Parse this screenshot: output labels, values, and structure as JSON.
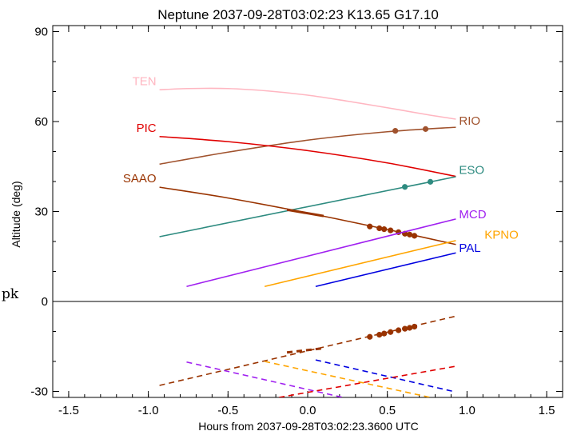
{
  "chart_data": {
    "type": "line",
    "title": "Neptune 2037-09-28T03:02:23  K13.65  G17.10",
    "xlabel": "Hours from 2037-09-28T03:02:23.3600 UTC",
    "ylabel": "Altitude (deg)",
    "xlim": [
      -1.6,
      1.6
    ],
    "ylim": [
      -32,
      92
    ],
    "xticks": [
      -1.5,
      -1.0,
      -0.5,
      0.0,
      0.5,
      1.0,
      1.5
    ],
    "xtick_labels": [
      "-1.5",
      "-1.0",
      "-0.5",
      "0.0",
      "0.5",
      "1.0",
      "1.5"
    ],
    "yticks": [
      -30,
      0,
      30,
      60,
      90
    ],
    "ytick_labels": [
      "-30",
      "0",
      "30",
      "60",
      "90"
    ],
    "zero_line": true,
    "grid": false,
    "stray_text": "pk",
    "series": [
      {
        "name": "TEN",
        "color": "#ffb6c1",
        "style": "solid",
        "points": [
          [
            -0.93,
            70.6
          ],
          [
            -0.75,
            71.0
          ],
          [
            -0.5,
            71.0
          ],
          [
            -0.25,
            70.2
          ],
          [
            0.0,
            68.8
          ],
          [
            0.25,
            66.8
          ],
          [
            0.5,
            64.6
          ],
          [
            0.75,
            62.3
          ],
          [
            0.93,
            60.8
          ]
        ]
      },
      {
        "name": "RIO",
        "color": "#a0522d",
        "style": "solid",
        "points": [
          [
            -0.93,
            45.8
          ],
          [
            -0.5,
            49.8
          ],
          [
            0.0,
            53.8
          ],
          [
            0.5,
            56.6
          ],
          [
            0.93,
            58.1
          ]
        ],
        "markers": [
          [
            0.55,
            56.9
          ],
          [
            0.74,
            57.5
          ]
        ]
      },
      {
        "name": "PIC",
        "color": "#e00000",
        "style": "solid",
        "points": [
          [
            -0.93,
            55.0
          ],
          [
            -0.5,
            53.3
          ],
          [
            0.0,
            50.3
          ],
          [
            0.5,
            46.2
          ],
          [
            0.93,
            41.7
          ]
        ]
      },
      {
        "name": "ESO",
        "color": "#2e8b80",
        "style": "solid",
        "points": [
          [
            -0.93,
            21.6
          ],
          [
            0.93,
            41.6
          ]
        ],
        "markers": [
          [
            0.61,
            38.2
          ],
          [
            0.77,
            39.9
          ]
        ]
      },
      {
        "name": "SAAO",
        "color": "#993300",
        "style": "solid",
        "points": [
          [
            -0.93,
            38.1
          ],
          [
            -0.5,
            34.5
          ],
          [
            0.0,
            29.5
          ],
          [
            0.5,
            24.0
          ],
          [
            0.93,
            19.0
          ]
        ],
        "markers": [
          [
            0.39,
            25.0
          ],
          [
            0.45,
            24.4
          ],
          [
            0.48,
            24.1
          ],
          [
            0.52,
            23.7
          ],
          [
            0.57,
            23.1
          ],
          [
            0.61,
            22.6
          ],
          [
            0.64,
            22.3
          ],
          [
            0.67,
            21.9
          ]
        ]
      },
      {
        "name": "MCD",
        "color": "#a020f0",
        "style": "solid",
        "points": [
          [
            -0.76,
            5.0
          ],
          [
            0.93,
            27.5
          ]
        ]
      },
      {
        "name": "KPNO",
        "color": "#ffa500",
        "style": "solid",
        "points": [
          [
            -0.27,
            5.0
          ],
          [
            0.93,
            20.3
          ]
        ]
      },
      {
        "name": "PAL",
        "color": "#0000e0",
        "style": "solid",
        "points": [
          [
            0.05,
            5.0
          ],
          [
            0.93,
            16.2
          ]
        ]
      },
      {
        "name": "",
        "color": "#993300",
        "style": "dashed",
        "points": [
          [
            -0.93,
            -28.0
          ],
          [
            0.93,
            -4.9
          ]
        ],
        "markers": [
          [
            0.39,
            -11.8
          ],
          [
            0.45,
            -11.1
          ],
          [
            0.48,
            -10.7
          ],
          [
            0.52,
            -10.2
          ],
          [
            0.57,
            -9.6
          ],
          [
            0.61,
            -9.1
          ],
          [
            0.64,
            -8.8
          ],
          [
            0.67,
            -8.4
          ]
        ]
      },
      {
        "name": "",
        "color": "#a020f0",
        "style": "dashed",
        "points": [
          [
            -0.76,
            -20.2
          ],
          [
            0.22,
            -32.0
          ]
        ]
      },
      {
        "name": "",
        "color": "#ffa500",
        "style": "dashed",
        "points": [
          [
            -0.27,
            -20.0
          ],
          [
            0.77,
            -32.0
          ]
        ]
      },
      {
        "name": "",
        "color": "#0000e0",
        "style": "dashed",
        "points": [
          [
            0.05,
            -19.5
          ],
          [
            0.93,
            -30.2
          ]
        ]
      },
      {
        "name": "",
        "color": "#e00000",
        "style": "dashed",
        "points": [
          [
            -0.18,
            -32.0
          ],
          [
            0.93,
            -21.6
          ]
        ]
      }
    ],
    "labels": [
      {
        "text": "TEN",
        "color": "#ffb6c1",
        "x": -0.95,
        "y": 72.1,
        "anchor": "end"
      },
      {
        "text": "PIC",
        "color": "#e00000",
        "x": -0.95,
        "y": 56.6,
        "anchor": "end"
      },
      {
        "text": "SAAO",
        "color": "#993300",
        "x": -0.95,
        "y": 39.8,
        "anchor": "end"
      },
      {
        "text": "RIO",
        "color": "#a0522d",
        "x": 0.95,
        "y": 59.0,
        "anchor": "start"
      },
      {
        "text": "ESO",
        "color": "#2e8b80",
        "x": 0.95,
        "y": 42.5,
        "anchor": "start"
      },
      {
        "text": "MCD",
        "color": "#a020f0",
        "x": 0.95,
        "y": 27.8,
        "anchor": "start"
      },
      {
        "text": "KPNO",
        "color": "#ffa500",
        "x": 1.11,
        "y": 21.0,
        "anchor": "start"
      },
      {
        "text": "PAL",
        "color": "#0000e0",
        "x": 0.95,
        "y": 16.6,
        "anchor": "start"
      }
    ]
  }
}
